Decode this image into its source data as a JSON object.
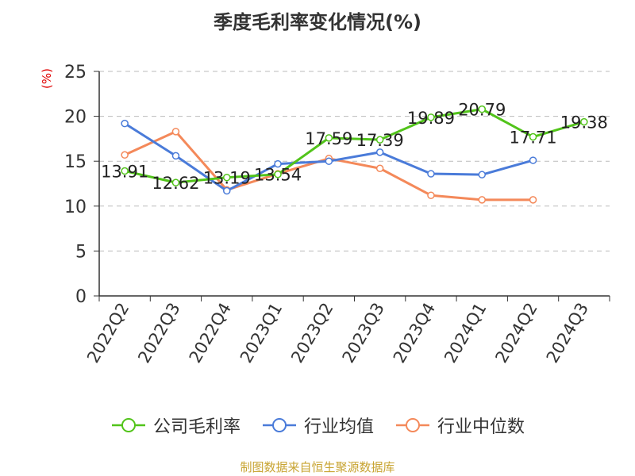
{
  "chart_data": {
    "type": "line",
    "title": "季度毛利率变化情况(%)",
    "ylabel": "(%)",
    "xlabel": "",
    "categories": [
      "2022Q2",
      "2022Q3",
      "2022Q4",
      "2023Q1",
      "2023Q2",
      "2023Q3",
      "2023Q4",
      "2024Q1",
      "2024Q2",
      "2024Q3"
    ],
    "ylim": [
      0,
      25
    ],
    "yticks": [
      0,
      5,
      10,
      15,
      20,
      25
    ],
    "grid": true,
    "legend_position": "bottom",
    "series": [
      {
        "name": "公司毛利率",
        "color": "#52c41a",
        "values": [
          13.91,
          12.62,
          13.19,
          13.54,
          17.59,
          17.39,
          19.89,
          20.79,
          17.71,
          19.38
        ],
        "labels": [
          "13.91",
          "12.62",
          "13.19",
          "13.54",
          "17.59",
          "17.39",
          "19.89",
          "20.79",
          "17.71",
          "19.38"
        ]
      },
      {
        "name": "行业均值",
        "color": "#4a7bd9",
        "values": [
          19.2,
          15.6,
          11.7,
          14.7,
          15.0,
          16.0,
          13.6,
          13.5,
          15.1,
          null
        ]
      },
      {
        "name": "行业中位数",
        "color": "#f4895a",
        "values": [
          15.7,
          18.3,
          11.8,
          13.6,
          15.3,
          14.2,
          11.2,
          10.7,
          10.7,
          null
        ]
      }
    ]
  },
  "source": "制图数据来自恒生聚源数据库"
}
